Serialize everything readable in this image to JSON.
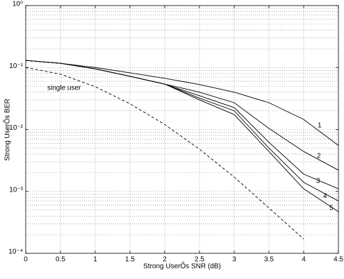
{
  "chart_data": {
    "type": "line",
    "xlabel": "Strong UserÕs SNR  (dB)",
    "ylabel": "Strong UserÕs BER",
    "x": [
      0,
      0.5,
      1,
      1.5,
      2,
      2.5,
      3,
      3.5,
      4,
      4.5
    ],
    "xlim": [
      0,
      4.5
    ],
    "xticks": [
      0,
      0.5,
      1,
      1.5,
      2,
      2.5,
      3,
      3.5,
      4,
      4.5
    ],
    "ylim": [
      0.0001,
      1
    ],
    "yticks": [
      {
        "value": 0.0001,
        "label": "10⁻⁴"
      },
      {
        "value": 0.001,
        "label": "10⁻³"
      },
      {
        "value": 0.01,
        "label": "10⁻²"
      },
      {
        "value": 0.1,
        "label": "10⁻¹"
      },
      {
        "value": 1,
        "label": "10⁰"
      }
    ],
    "yscale": "log",
    "grid": true,
    "minor_grid": true,
    "series": [
      {
        "name": "single user",
        "color": "#000000",
        "dashed": true,
        "values": [
          0.1,
          0.078,
          0.049,
          0.026,
          0.012,
          0.0048,
          0.0017,
          0.00054,
          0.00017,
          null
        ]
      },
      {
        "name": "1",
        "color": "#000000",
        "dashed": false,
        "values": [
          0.13,
          0.117,
          0.1,
          0.082,
          0.067,
          0.053,
          0.04,
          0.027,
          0.0145,
          0.0055
        ]
      },
      {
        "name": "2",
        "color": "#000000",
        "dashed": false,
        "values": [
          0.13,
          0.117,
          0.095,
          0.072,
          0.054,
          0.04,
          0.027,
          0.0104,
          0.0044,
          0.0022
        ]
      },
      {
        "name": "3",
        "color": "#000000",
        "dashed": false,
        "values": [
          0.13,
          0.117,
          0.095,
          0.072,
          0.054,
          0.035,
          0.0225,
          0.0062,
          0.0019,
          0.0011
        ]
      },
      {
        "name": "4",
        "color": "#000000",
        "dashed": false,
        "values": [
          0.13,
          0.117,
          0.095,
          0.072,
          0.054,
          0.032,
          0.02,
          0.005,
          0.0014,
          0.0007
        ]
      },
      {
        "name": "5",
        "color": "#000000",
        "dashed": false,
        "values": [
          0.13,
          0.117,
          0.095,
          0.072,
          0.054,
          0.03,
          0.0174,
          0.0044,
          0.0011,
          0.00047
        ]
      }
    ]
  }
}
